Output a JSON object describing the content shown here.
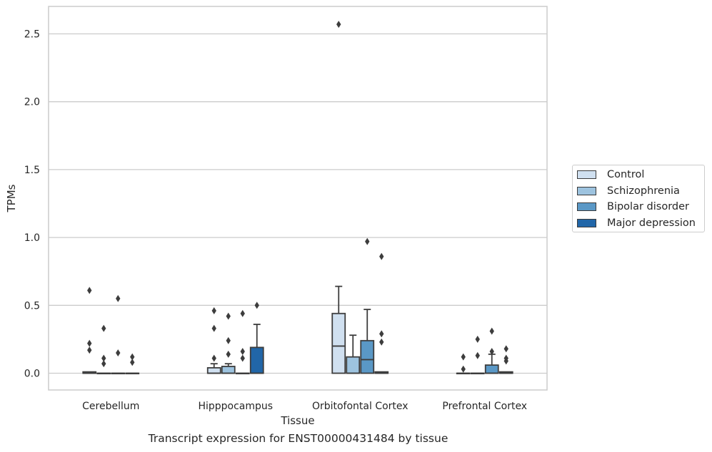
{
  "chart_data": {
    "type": "boxplot",
    "xlabel": "Tissue",
    "ylabel": "TPMs",
    "caption": "Transcript expression for ENST00000431484 by tissue",
    "ylim": [
      -0.12,
      2.71
    ],
    "yticks": [
      "0.0",
      "0.5",
      "1.0",
      "1.5",
      "2.0",
      "2.5"
    ],
    "ytick_values": [
      0,
      0.5,
      1.0,
      1.5,
      2.0,
      2.5
    ],
    "grid": "horizontal",
    "legend_position": "right",
    "categories": [
      "Cerebellum",
      "Hipppocampus",
      "Orbitofontal Cortex",
      "Prefrontal Cortex"
    ],
    "series": [
      {
        "name": "Control",
        "color": "#d0e0f0",
        "boxes": [
          {
            "whislo": 0,
            "q1": 0,
            "med": 0,
            "q3": 0.01,
            "whishi": 0.01,
            "fliers": [
              0.61,
              0.22,
              0.17
            ]
          },
          {
            "whislo": 0,
            "q1": 0,
            "med": 0,
            "q3": 0.04,
            "whishi": 0.07,
            "fliers": [
              0.46,
              0.33,
              0.11
            ]
          },
          {
            "whislo": 0,
            "q1": 0,
            "med": 0.2,
            "q3": 0.44,
            "whishi": 0.64,
            "fliers": [
              2.57
            ]
          },
          {
            "whislo": 0,
            "q1": 0,
            "med": 0,
            "q3": 0,
            "whishi": 0,
            "fliers": [
              0.12,
              0.03
            ]
          }
        ]
      },
      {
        "name": "Schizophrenia",
        "color": "#9dc3df",
        "boxes": [
          {
            "whislo": 0,
            "q1": 0,
            "med": 0,
            "q3": 0,
            "whishi": 0,
            "fliers": [
              0.33,
              0.11,
              0.07
            ]
          },
          {
            "whislo": 0,
            "q1": 0,
            "med": 0,
            "q3": 0.05,
            "whishi": 0.07,
            "fliers": [
              0.42,
              0.24,
              0.14
            ]
          },
          {
            "whislo": 0,
            "q1": 0,
            "med": 0,
            "q3": 0.12,
            "whishi": 0.28,
            "fliers": []
          },
          {
            "whislo": 0,
            "q1": 0,
            "med": 0,
            "q3": 0,
            "whishi": 0,
            "fliers": [
              0.25,
              0.13
            ]
          }
        ]
      },
      {
        "name": "Bipolar disorder",
        "color": "#5a98c6",
        "boxes": [
          {
            "whislo": 0,
            "q1": 0,
            "med": 0,
            "q3": 0,
            "whishi": 0,
            "fliers": [
              0.55,
              0.15
            ]
          },
          {
            "whislo": 0,
            "q1": 0,
            "med": 0,
            "q3": 0,
            "whishi": 0,
            "fliers": [
              0.44,
              0.16,
              0.11
            ]
          },
          {
            "whislo": 0,
            "q1": 0,
            "med": 0.1,
            "q3": 0.24,
            "whishi": 0.47,
            "fliers": [
              0.97
            ]
          },
          {
            "whislo": 0,
            "q1": 0,
            "med": 0,
            "q3": 0.06,
            "whishi": 0.14,
            "fliers": [
              0.31,
              0.16
            ]
          }
        ]
      },
      {
        "name": "Major depression",
        "color": "#2166a8",
        "boxes": [
          {
            "whislo": 0,
            "q1": 0,
            "med": 0,
            "q3": 0,
            "whishi": 0,
            "fliers": [
              0.12,
              0.08
            ]
          },
          {
            "whislo": 0,
            "q1": 0,
            "med": 0,
            "q3": 0.19,
            "whishi": 0.36,
            "fliers": [
              0.5
            ]
          },
          {
            "whislo": 0,
            "q1": 0,
            "med": 0,
            "q3": 0.01,
            "whishi": 0.01,
            "fliers": [
              0.86,
              0.29,
              0.23
            ]
          },
          {
            "whislo": 0,
            "q1": 0,
            "med": 0,
            "q3": 0.01,
            "whishi": 0.01,
            "fliers": [
              0.18,
              0.11,
              0.09
            ]
          }
        ]
      }
    ]
  }
}
